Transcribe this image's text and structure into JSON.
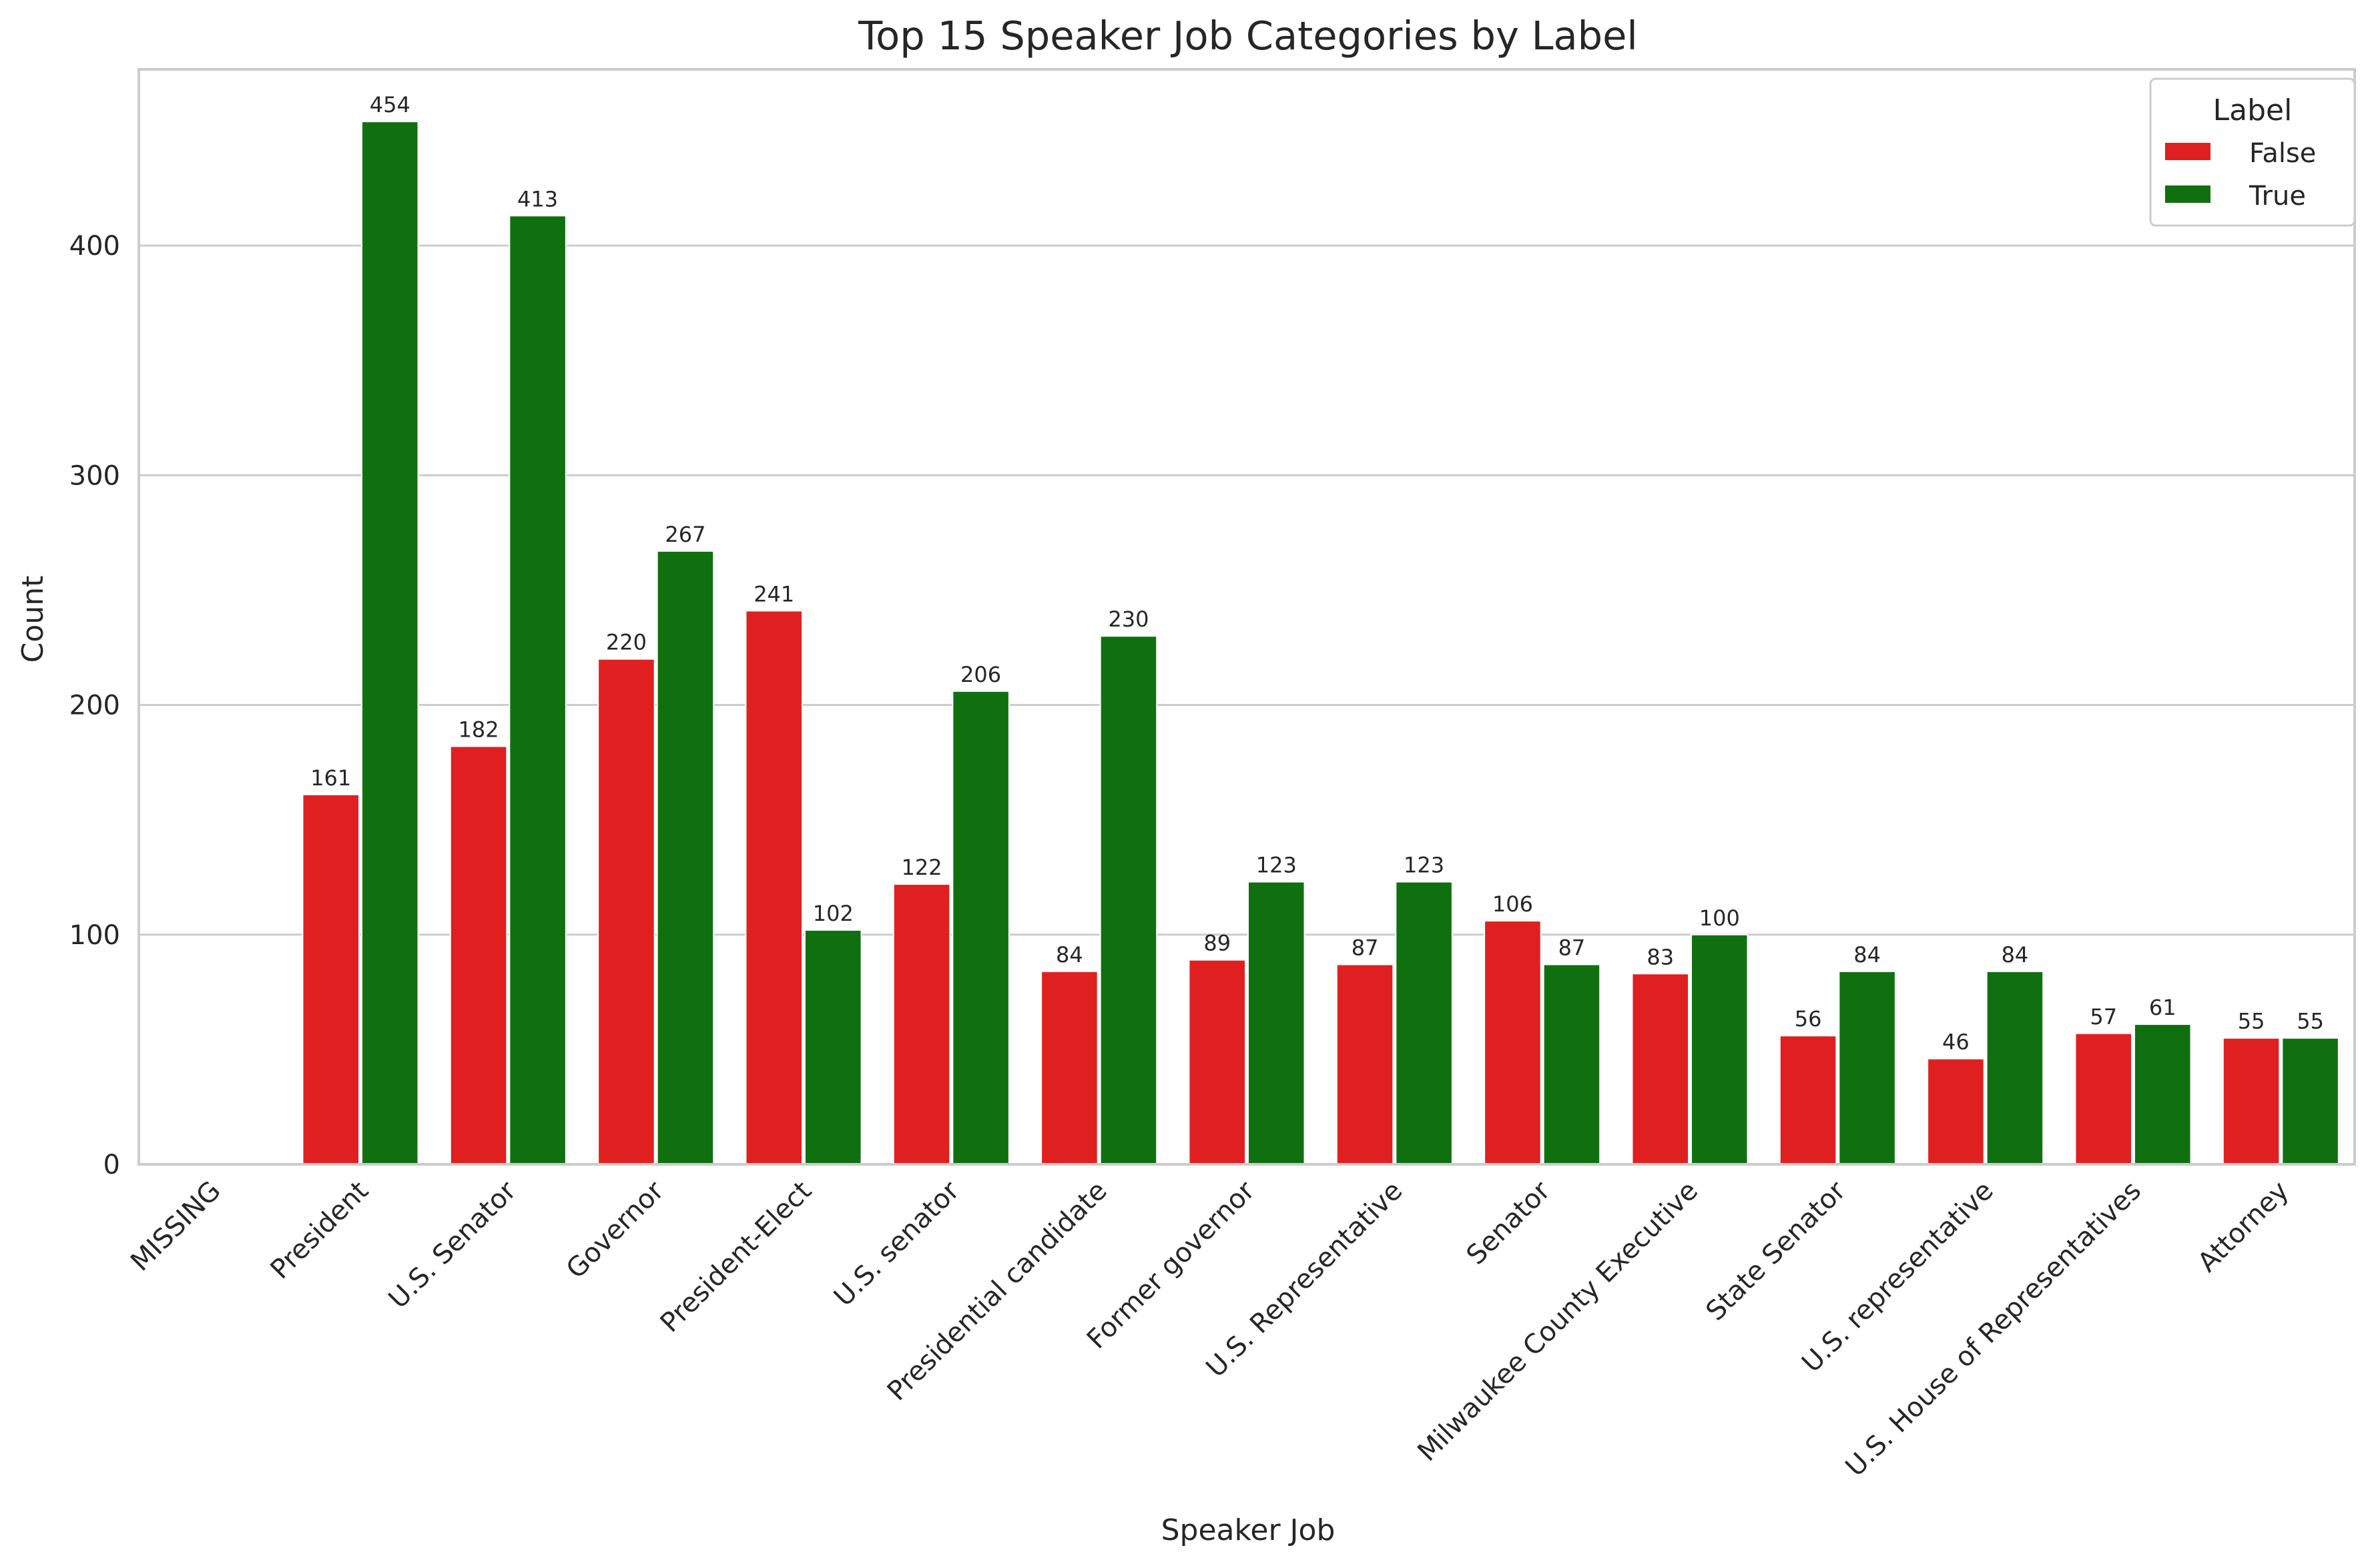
{
  "chart_data": {
    "type": "bar",
    "title": "Top 15 Speaker Job Categories by Label",
    "xlabel": "Speaker Job",
    "ylabel": "Count",
    "categories": [
      "MISSING",
      "President",
      "U.S. Senator",
      "Governor",
      "President-Elect",
      "U.S. senator",
      "Presidential candidate",
      "Former governor",
      "U.S. Representative",
      "Senator",
      "Milwaukee County Executive",
      "State Senator",
      "U.S. representative",
      "U.S. House of Representatives",
      "Attorney"
    ],
    "series": [
      {
        "name": "False",
        "color": "#e02020",
        "values": [
          null,
          161,
          182,
          220,
          241,
          122,
          84,
          89,
          87,
          106,
          83,
          56,
          46,
          57,
          55
        ]
      },
      {
        "name": "True",
        "color": "#107010",
        "values": [
          null,
          454,
          413,
          267,
          102,
          206,
          230,
          123,
          123,
          87,
          100,
          84,
          84,
          61,
          55
        ]
      }
    ],
    "yticks": [
      0,
      100,
      200,
      300,
      400
    ],
    "ylim": [
      0,
      476.7
    ],
    "grid": "horizontal",
    "legend": {
      "title": "Label",
      "position": "top-right"
    }
  }
}
